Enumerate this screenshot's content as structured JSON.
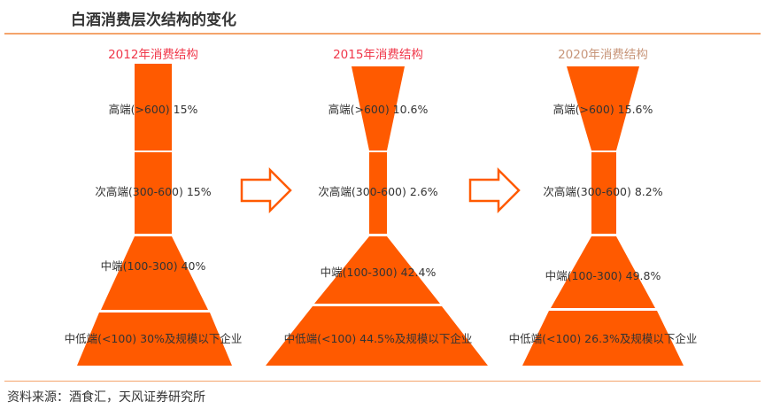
{
  "title": "白酒消费层次结构的变化",
  "source": "资料来源：酒食汇，天风证券研究所",
  "colors": {
    "fill": "#ff5a00",
    "year_2012": "#f0384b",
    "year_2015": "#f0384b",
    "year_2020": "#c8967a",
    "line": "#f4a46c"
  },
  "pyramids": [
    {
      "year_label": "2012年消费结构",
      "segments": [
        {
          "label": "高端(>600) 15%",
          "share": 15
        },
        {
          "label": "次高端(300-600) 15%",
          "share": 15
        },
        {
          "label": "中端(100-300) 40%",
          "share": 40
        },
        {
          "label": "中低端(<100) 30%及规模以下企业",
          "share": 30
        }
      ]
    },
    {
      "year_label": "2015年消费结构",
      "segments": [
        {
          "label": "高端(>600) 10.6%",
          "share": 10.6
        },
        {
          "label": "次高端(300-600) 2.6%",
          "share": 2.6
        },
        {
          "label": "中端(100-300) 42.4%",
          "share": 42.4
        },
        {
          "label": "中低端(<100) 44.5%及规模以下企业",
          "share": 44.5
        }
      ]
    },
    {
      "year_label": "2020年消费结构",
      "segments": [
        {
          "label": "高端(>600) 15.6%",
          "share": 15.6
        },
        {
          "label": "次高端(300-600) 8.2%",
          "share": 8.2
        },
        {
          "label": "中端(100-300) 49.8%",
          "share": 49.8
        },
        {
          "label": "中低端(<100) 26.3%及规模以下企业",
          "share": 26.3
        }
      ]
    }
  ],
  "arrows": [
    "arrow-right-outline-icon",
    "arrow-right-outline-icon"
  ]
}
